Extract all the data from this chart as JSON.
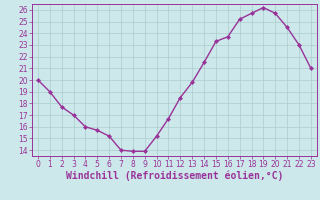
{
  "x": [
    0,
    1,
    2,
    3,
    4,
    5,
    6,
    7,
    8,
    9,
    10,
    11,
    12,
    13,
    14,
    15,
    16,
    17,
    18,
    19,
    20,
    21,
    22,
    23
  ],
  "y": [
    20,
    19,
    17.7,
    17,
    16,
    15.7,
    15.2,
    14,
    13.9,
    13.9,
    15.2,
    16.7,
    18.5,
    19.8,
    21.5,
    23.3,
    23.7,
    25.2,
    25.7,
    26.2,
    25.7,
    24.5,
    23,
    21
  ],
  "line_color": "#993399",
  "marker": "D",
  "marker_size": 2,
  "bg_color": "#cce8ea",
  "grid_color": "#aacccc",
  "xlabel": "Windchill (Refroidissement éolien,°C)",
  "xlim": [
    -0.5,
    23.5
  ],
  "ylim": [
    13.5,
    26.5
  ],
  "yticks": [
    14,
    15,
    16,
    17,
    18,
    19,
    20,
    21,
    22,
    23,
    24,
    25,
    26
  ],
  "xticks": [
    0,
    1,
    2,
    3,
    4,
    5,
    6,
    7,
    8,
    9,
    10,
    11,
    12,
    13,
    14,
    15,
    16,
    17,
    18,
    19,
    20,
    21,
    22,
    23
  ],
  "tick_fontsize": 5.5,
  "label_fontsize": 7,
  "line_width": 1.0
}
